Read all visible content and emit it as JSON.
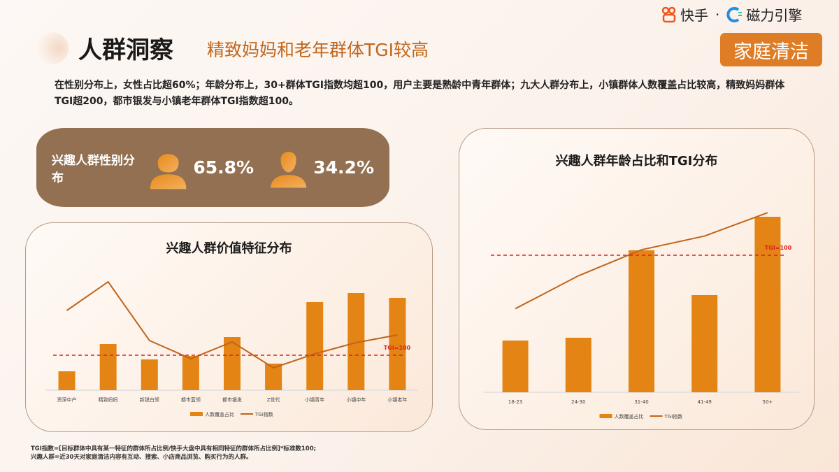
{
  "header": {
    "title": "人群洞察",
    "subtitle": "精致妈妈和老年群体TGI较高",
    "category_tag": "家庭清洁"
  },
  "brand": {
    "kuaishou": "快手",
    "separator": "·",
    "cili": "磁力引擎"
  },
  "summary": "在性别分布上，女性占比超60%；年龄分布上，30+群体TGI指数均超100，用户主要是熟龄中青年群体；九大人群分布上，小镇群体人数覆盖占比较高，精致妈妈群体TGI超200，都市银发与小镇老年群体TGI指数超100。",
  "gender": {
    "label": "兴趣人群性别分布",
    "female_pct": "65.8%",
    "male_pct": "34.2%",
    "icons": [
      "female-avatar-icon",
      "male-avatar-icon"
    ]
  },
  "colors": {
    "bar": "#e38414",
    "line": "#c0651c",
    "reference": "#e02020",
    "accent": "#de7d26",
    "gender_panel": "#927051"
  },
  "chart_data": [
    {
      "type": "bar+line",
      "title": "兴趣人群价值特征分布",
      "categories": [
        "资深中产",
        "精致妈妈",
        "新锐白领",
        "都市蓝领",
        "都市银发",
        "Z世代",
        "小镇青年",
        "小镇中年",
        "小镇老年"
      ],
      "series": [
        {
          "name": "人数覆盖占比",
          "type": "bar",
          "values": [
            27,
            66,
            44,
            49,
            76,
            38,
            126,
            139,
            132
          ]
        },
        {
          "name": "TGI指数",
          "type": "line",
          "values": [
            228,
            310,
            142,
            90,
            138,
            64,
            104,
            136,
            158
          ]
        }
      ],
      "reference": {
        "label": "TGI=100",
        "value": 100
      },
      "legend": "bottom",
      "grid": false
    },
    {
      "type": "bar+line",
      "title": "兴趣人群年龄占比和TGI分布",
      "categories": [
        "18-23",
        "24-30",
        "31-40",
        "41-49",
        "50+"
      ],
      "series": [
        {
          "name": "人数覆盖占比",
          "type": "bar",
          "values": [
            74,
            78,
            203,
            139,
            251
          ]
        },
        {
          "name": "TGI指数",
          "type": "line",
          "values": [
            61,
            85,
            104,
            114,
            131
          ]
        }
      ],
      "reference": {
        "label": "TGI=100",
        "value": 100
      },
      "legend": "bottom",
      "grid": false
    }
  ],
  "footnote": [
    "TGI指数=[目标群体中具有某一特征的群体所占比例/快手大盘中具有相同特征的群体所占比例]*标准数100;",
    "兴趣人群=近30天对家庭清洁内容有互动、搜索、小店商品浏览、购买行为的人群。"
  ]
}
